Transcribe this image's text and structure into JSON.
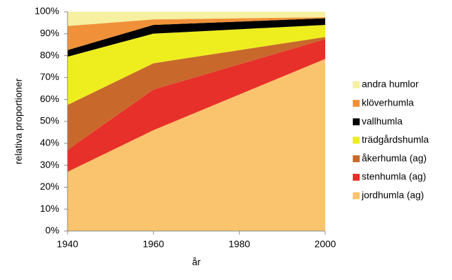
{
  "chart_data": {
    "type": "stacked-area",
    "x_label": "år",
    "y_label": "relativa proportioner",
    "x": [
      1940,
      1960,
      2000
    ],
    "series": [
      {
        "name": "jordhumla (ag)",
        "color": "#f9c46d",
        "values": [
          27,
          46,
          78.5
        ]
      },
      {
        "name": "stenhumla (ag)",
        "color": "#e8302a",
        "values": [
          10,
          18.5,
          9
        ]
      },
      {
        "name": "åkerhumla (ag)",
        "color": "#c8692b",
        "values": [
          20.5,
          12,
          1
        ]
      },
      {
        "name": "trädgårdshumla",
        "color": "#eeee1e",
        "values": [
          22,
          13.5,
          5.5
        ]
      },
      {
        "name": "vallhumla",
        "color": "#000000",
        "values": [
          3,
          4,
          3
        ]
      },
      {
        "name": "klöverhumla",
        "color": "#f0913a",
        "values": [
          11,
          2.5,
          0.5
        ]
      },
      {
        "name": "andra humlor",
        "color": "#f6f0a0",
        "values": [
          6.5,
          3.5,
          2.5
        ]
      }
    ],
    "xlim": [
      1940,
      2000
    ],
    "xticks": [
      1940,
      1960,
      1980,
      2000
    ],
    "ylim": [
      0,
      100
    ],
    "yticks": [
      {
        "value": 0,
        "label": "0%"
      },
      {
        "value": 10,
        "label": "10%"
      },
      {
        "value": 20,
        "label": "20%"
      },
      {
        "value": 30,
        "label": "30%"
      },
      {
        "value": 40,
        "label": "40%"
      },
      {
        "value": 50,
        "label": "50%"
      },
      {
        "value": 60,
        "label": "60%"
      },
      {
        "value": 70,
        "label": "70%"
      },
      {
        "value": 80,
        "label": "80%"
      },
      {
        "value": 90,
        "label": "90%"
      },
      {
        "value": 100,
        "label": "100%"
      }
    ],
    "legend": "right"
  }
}
